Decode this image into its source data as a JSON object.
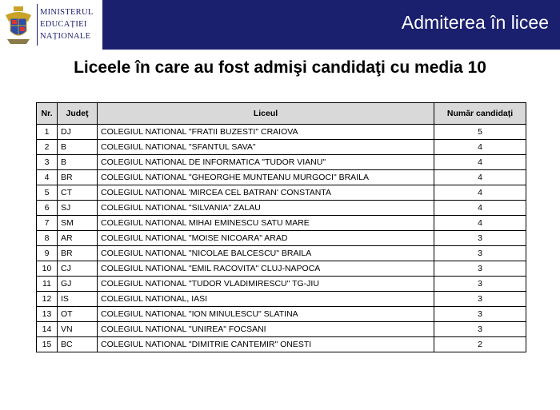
{
  "header": {
    "logo_lines": [
      "MINISTERUL",
      "EDUCAȚIEI",
      "NAȚIONALE"
    ],
    "banner_title": "Admiterea în licee"
  },
  "page_title": "Liceele în care au fost admişi candidaţi cu media 10",
  "table": {
    "columns": [
      "Nr.",
      "Judeţ",
      "Liceul",
      "Număr candidaţi"
    ],
    "rows": [
      [
        "1",
        "DJ",
        "COLEGIUL NATIONAL \"FRATII BUZESTI\" CRAIOVA",
        "5"
      ],
      [
        "2",
        "B",
        "COLEGIUL NATIONAL \"SFANTUL SAVA\"",
        "4"
      ],
      [
        "3",
        "B",
        "COLEGIUL NATIONAL DE INFORMATICA \"TUDOR VIANU\"",
        "4"
      ],
      [
        "4",
        "BR",
        "COLEGIUL NATIONAL \"GHEORGHE MUNTEANU MURGOCI\" BRAILA",
        "4"
      ],
      [
        "5",
        "CT",
        "COLEGIUL NATIONAL 'MIRCEA CEL BATRAN' CONSTANTA",
        "4"
      ],
      [
        "6",
        "SJ",
        "COLEGIUL NATIONAL \"SILVANIA\" ZALAU",
        "4"
      ],
      [
        "7",
        "SM",
        "COLEGIUL NATIONAL MIHAI EMINESCU SATU MARE",
        "4"
      ],
      [
        "8",
        "AR",
        "COLEGIUL NATIONAL \"MOISE NICOARA\" ARAD",
        "3"
      ],
      [
        "9",
        "BR",
        "COLEGIUL NATIONAL \"NICOLAE BALCESCU\" BRAILA",
        "3"
      ],
      [
        "10",
        "CJ",
        "COLEGIUL NATIONAL \"EMIL RACOVITA\" CLUJ-NAPOCA",
        "3"
      ],
      [
        "11",
        "GJ",
        "COLEGIUL NATIONAL \"TUDOR VLADIMIRESCU\" TG-JIU",
        "3"
      ],
      [
        "12",
        "IS",
        "COLEGIUL NATIONAL, IASI",
        "3"
      ],
      [
        "13",
        "OT",
        "COLEGIUL NATIONAL \"ION MINULESCU\" SLATINA",
        "3"
      ],
      [
        "14",
        "VN",
        "COLEGIUL NATIONAL \"UNIREA\" FOCSANI",
        "3"
      ],
      [
        "15",
        "BC",
        "COLEGIUL NATIONAL \"DIMITRIE CANTEMIR\" ONESTI",
        "2"
      ]
    ]
  }
}
